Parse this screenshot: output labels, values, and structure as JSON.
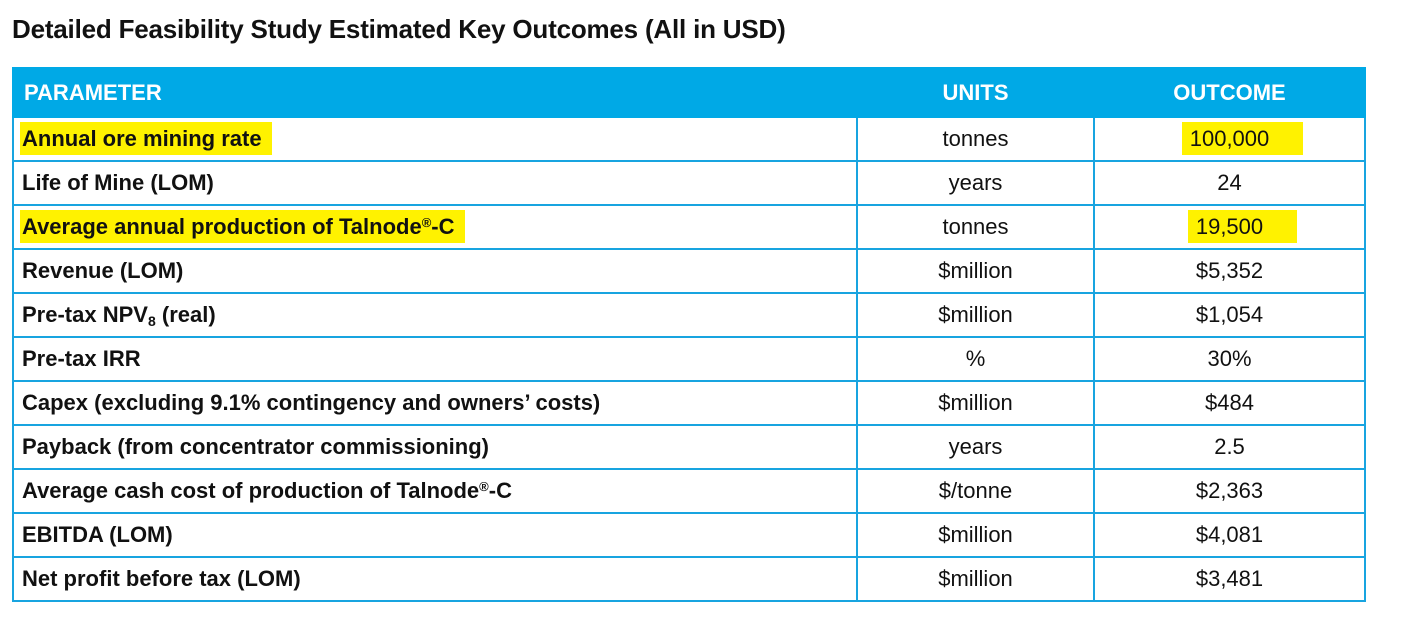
{
  "title": "Detailed Feasibility Study Estimated Key Outcomes (All in USD)",
  "table": {
    "headers": [
      "PARAMETER",
      "UNITS",
      "OUTCOME"
    ],
    "rows": [
      {
        "parameter": "Annual ore mining rate",
        "units": "tonnes",
        "outcome": "100,000",
        "highlighted": true
      },
      {
        "parameter": "Life of Mine (LOM)",
        "units": "years",
        "outcome": "24",
        "highlighted": false
      },
      {
        "parameter": "Average annual production of Talnode®-C",
        "units": "tonnes",
        "outcome": "19,500",
        "highlighted": true
      },
      {
        "parameter": "Revenue (LOM)",
        "units": "$million",
        "outcome": "$5,352",
        "highlighted": false
      },
      {
        "parameter": "Pre-tax NPV8 (real)",
        "units": "$million",
        "outcome": "$1,054",
        "highlighted": false
      },
      {
        "parameter": "Pre-tax IRR",
        "units": "%",
        "outcome": "30%",
        "highlighted": false
      },
      {
        "parameter": "Capex (excluding 9.1% contingency and owners’ costs)",
        "units": "$million",
        "outcome": "$484",
        "highlighted": false
      },
      {
        "parameter": "Payback (from concentrator commissioning)",
        "units": "years",
        "outcome": "2.5",
        "highlighted": false
      },
      {
        "parameter": "Average cash cost of production of Talnode®-C",
        "units": "$/tonne",
        "outcome": "$2,363",
        "highlighted": false
      },
      {
        "parameter": "EBITDA (LOM)",
        "units": "$million",
        "outcome": "$4,081",
        "highlighted": false
      },
      {
        "parameter": "Net profit before tax (LOM)",
        "units": "$million",
        "outcome": "$3,481",
        "highlighted": false
      }
    ]
  },
  "colors": {
    "header_bg": "#00a9e6",
    "border": "#18a4e0",
    "highlight": "#fff200"
  }
}
